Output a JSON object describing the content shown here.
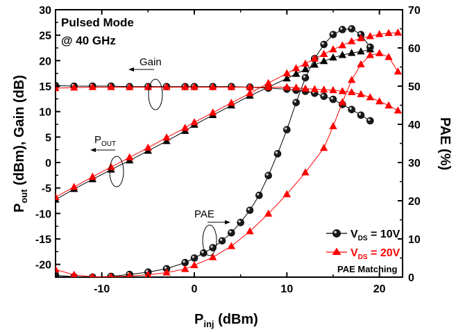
{
  "chart_data": {
    "type": "line",
    "annotations": {
      "title_line1": "Pulsed Mode",
      "title_line2": "@ 40 GHz",
      "gain_label": "Gain",
      "pout_label_main": "P",
      "pout_label_sub": "OUT",
      "pae_label": "PAE",
      "legend_note": "PAE Matching"
    },
    "xaxis": {
      "label_main": "P",
      "label_sub": "inj",
      "label_unit": " (dBm)",
      "range": [
        -15,
        22.5
      ],
      "ticks": [
        -10,
        0,
        10,
        20
      ]
    },
    "yaxis_left": {
      "label_main": "P",
      "label_sub": "out",
      "label_rest": " (dBm), Gain (dB)",
      "range": [
        -22.5,
        30
      ],
      "ticks": [
        -20,
        -15,
        -10,
        -5,
        0,
        5,
        10,
        15,
        20,
        25,
        30
      ]
    },
    "yaxis_right": {
      "label": "PAE (%)",
      "range": [
        0,
        70
      ],
      "ticks": [
        0,
        10,
        20,
        30,
        40,
        50,
        60,
        70
      ]
    },
    "legend": [
      {
        "id": "10v",
        "label_main": "V",
        "label_sub": "DS",
        "label_rest": " = 10V",
        "color": "#000000",
        "marker": "sphere"
      },
      {
        "id": "20v",
        "label_main": "V",
        "label_sub": "DS",
        "label_rest": " = 20V",
        "color": "#ff0000",
        "marker": "triangle"
      }
    ],
    "series": [
      {
        "id": "pout-10v",
        "group": "10v",
        "axis": "left",
        "marker": "triangle",
        "color": "#000000",
        "x": [
          -15,
          -13,
          -11,
          -9,
          -7,
          -5,
          -3,
          -1,
          0,
          2,
          4,
          6,
          8,
          10,
          11,
          12,
          13,
          14,
          15,
          16,
          17,
          18,
          19
        ],
        "y": [
          -7.3,
          -5.2,
          -3.3,
          -1.4,
          0.4,
          2.3,
          4.2,
          6.2,
          7.4,
          9.3,
          11.2,
          13.1,
          14.8,
          16.5,
          17.4,
          18.3,
          19.2,
          19.9,
          20.6,
          21.1,
          21.5,
          21.8,
          22.2
        ]
      },
      {
        "id": "gain-10v",
        "group": "10v",
        "axis": "left",
        "marker": "sphere",
        "color": "#000000",
        "x": [
          -15,
          -13,
          -11,
          -9,
          -7,
          -5,
          -3,
          -1,
          0,
          2,
          4,
          6,
          8,
          10,
          11,
          12,
          13,
          14,
          15,
          16,
          17,
          18,
          19
        ],
        "y": [
          15.1,
          15.0,
          15.0,
          15.0,
          14.9,
          14.9,
          14.9,
          14.9,
          14.9,
          14.9,
          14.9,
          14.8,
          14.6,
          14.4,
          14.2,
          14.0,
          13.6,
          13.0,
          12.4,
          11.4,
          10.4,
          9.3,
          8.2
        ]
      },
      {
        "id": "pae-10v",
        "group": "10v",
        "axis": "right",
        "marker": "sphere",
        "color": "#000000",
        "x": [
          -15,
          -13,
          -11,
          -9,
          -7,
          -5,
          -3,
          -1,
          0,
          1,
          2,
          3,
          4,
          5,
          6,
          7,
          8,
          9,
          10,
          11,
          12,
          13,
          14,
          15,
          16,
          17,
          18,
          19
        ],
        "y": [
          0.5,
          0.1,
          0,
          0.2,
          0.7,
          1.3,
          2.2,
          3.8,
          5.0,
          6.3,
          7.7,
          9.5,
          11.6,
          14.3,
          17.5,
          21.4,
          26.6,
          32.3,
          38.6,
          45.7,
          52.2,
          57.2,
          60.9,
          63.5,
          64.8,
          65.0,
          63.5,
          60.2
        ]
      },
      {
        "id": "pout-20v",
        "group": "20v",
        "axis": "left",
        "marker": "triangle",
        "color": "#ff0000",
        "x": [
          -15,
          -13,
          -11,
          -9,
          -7,
          -5,
          -3,
          -1,
          0,
          2,
          4,
          6,
          8,
          10,
          11,
          12,
          13,
          14,
          15,
          16,
          17,
          18,
          19,
          20,
          21,
          22
        ],
        "y": [
          -6.8,
          -4.8,
          -2.8,
          -0.9,
          1.0,
          2.9,
          4.9,
          6.8,
          7.9,
          9.8,
          11.7,
          13.6,
          15.6,
          17.5,
          18.5,
          19.4,
          20.4,
          21.3,
          22.2,
          23.0,
          23.8,
          24.4,
          24.8,
          25.2,
          25.4,
          25.5
        ]
      },
      {
        "id": "gain-20v",
        "group": "20v",
        "axis": "left",
        "marker": "triangle",
        "color": "#ff0000",
        "x": [
          -15,
          -13,
          -11,
          -9,
          -7,
          -5,
          -3,
          -1,
          0,
          2,
          4,
          6,
          8,
          10,
          11,
          12,
          13,
          14,
          15,
          16,
          17,
          18,
          19,
          20,
          21,
          22
        ],
        "y": [
          14.6,
          14.7,
          14.8,
          14.8,
          14.8,
          14.8,
          14.8,
          14.8,
          14.8,
          14.8,
          14.8,
          14.8,
          14.8,
          14.8,
          14.7,
          14.5,
          14.4,
          14.3,
          14.2,
          14.0,
          13.8,
          13.4,
          12.8,
          12.0,
          11.2,
          10.2
        ]
      },
      {
        "id": "pae-20v",
        "group": "20v",
        "axis": "right",
        "marker": "triangle",
        "color": "#ff0000",
        "x": [
          -15,
          -13,
          -11,
          -9,
          -7,
          -5,
          -3,
          -1,
          0,
          2,
          4,
          6,
          8,
          10,
          12,
          14,
          15,
          16,
          17,
          18,
          19,
          20,
          21,
          22
        ],
        "y": [
          2.0,
          0.6,
          0.1,
          0.1,
          0.3,
          0.6,
          1.2,
          2.1,
          3.1,
          5.2,
          8.1,
          12.0,
          16.6,
          21.7,
          27.4,
          33.8,
          39.5,
          45.8,
          51.6,
          55.7,
          58.1,
          58.6,
          57.6,
          53.8
        ]
      }
    ]
  }
}
